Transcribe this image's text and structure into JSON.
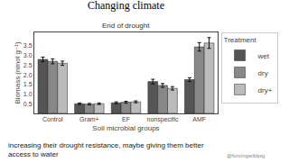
{
  "chart_data": {
    "type": "bar",
    "title": "Changing climate",
    "subtitle": "End of drought",
    "xlabel": "Soil microbial groups",
    "ylabel": "Biomass (nmol g⁻¹)",
    "legend_title": "Treatment",
    "categories": [
      "Control",
      "Gram+",
      "EF",
      "nonspecific",
      "AMF"
    ],
    "series": [
      {
        "name": "wet",
        "color": "#555555",
        "values": [
          2.8,
          0.5,
          0.55,
          1.65,
          1.75
        ],
        "errors": [
          0.12,
          0.04,
          0.05,
          0.12,
          0.1
        ]
      },
      {
        "name": "dry",
        "color": "#888888",
        "values": [
          2.7,
          0.48,
          0.58,
          1.45,
          3.45
        ],
        "errors": [
          0.13,
          0.04,
          0.05,
          0.1,
          0.22
        ]
      },
      {
        "name": "dry+",
        "color": "#bbbbbb",
        "values": [
          2.6,
          0.5,
          0.6,
          1.3,
          3.65
        ],
        "errors": [
          0.11,
          0.04,
          0.05,
          0.09,
          0.28
        ]
      }
    ],
    "ylim": [
      0,
      4.2
    ],
    "yticks": [
      0.5,
      {
        "value": 1.0,
        "label": "1.0"
      },
      1.5,
      {
        "value": 2.0,
        "label": "2.0"
      },
      2.5,
      {
        "value": 3.0,
        "label": "3.0"
      },
      3.5
    ],
    "grid": false,
    "legend": "right",
    "annotations": [
      "increasing their drought resistance, maybe giving them better\naccess to water",
      "@forcingwildpig"
    ]
  }
}
